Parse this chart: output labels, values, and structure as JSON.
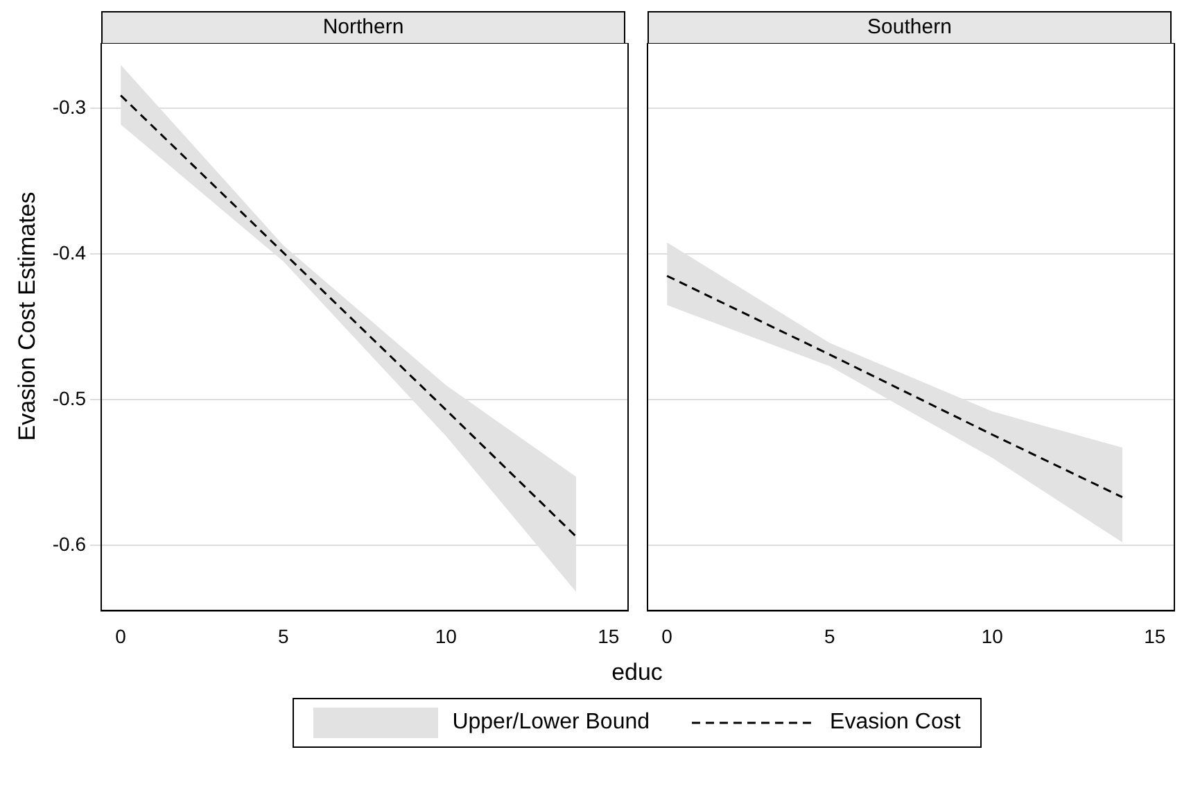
{
  "chart_data": [
    {
      "type": "line",
      "title": "Northern",
      "xlabel": "educ",
      "ylabel": "Evasion Cost Estimates",
      "annotations": [
        "Upper/Lower Bound"
      ],
      "x": [
        0,
        5,
        10,
        14
      ],
      "xlim": [
        -0.6,
        15.6
      ],
      "xticks": [
        0,
        5,
        10,
        15
      ],
      "ylim": [
        -0.645,
        -0.255
      ],
      "yticks": [
        -0.3,
        -0.4,
        -0.5,
        -0.6
      ],
      "grid": "y",
      "legend": "bottom",
      "series": [
        {
          "name": "Evasion Cost",
          "color": "#000000",
          "line_style": "dashed",
          "values": [
            -0.291,
            -0.399,
            -0.507,
            -0.594
          ],
          "lower": [
            -0.311,
            -0.405,
            -0.525,
            -0.632
          ],
          "upper": [
            -0.27,
            -0.394,
            -0.49,
            -0.553
          ]
        }
      ]
    },
    {
      "type": "line",
      "title": "Southern",
      "x": [
        0,
        5,
        10,
        14
      ],
      "xlim": [
        -0.6,
        15.6
      ],
      "xticks": [
        0,
        5,
        10,
        15
      ],
      "ylim": [
        -0.645,
        -0.255
      ],
      "yticks": [
        -0.3,
        -0.4,
        -0.5,
        -0.6
      ],
      "grid": "y",
      "tick_labels": "x",
      "series": [
        {
          "color": "#000000",
          "line_style": "dashed",
          "values": [
            -0.415,
            -0.469,
            -0.524,
            -0.567
          ],
          "lower": [
            -0.435,
            -0.477,
            -0.54,
            -0.598
          ],
          "upper": [
            -0.392,
            -0.461,
            -0.508,
            -0.533
          ]
        }
      ]
    }
  ]
}
